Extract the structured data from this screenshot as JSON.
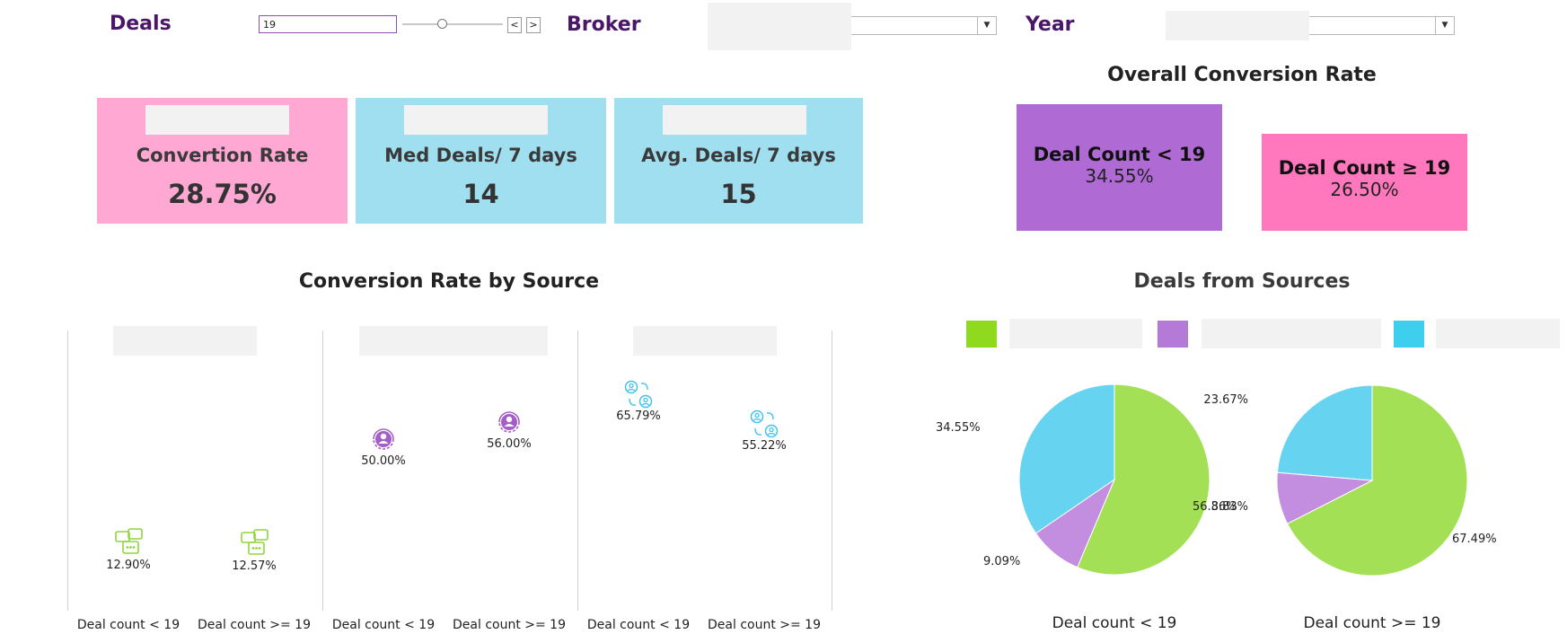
{
  "filters": {
    "deals_label": "Deals",
    "deals_value": "19",
    "prev_label": "<",
    "next_label": ">",
    "broker_label": "Broker",
    "year_label": "Year",
    "dropdown_arrow": "▼"
  },
  "kpis": [
    {
      "label": "Convertion Rate",
      "value": "28.75%",
      "color": "#ffa8d4"
    },
    {
      "label": "Med Deals/ 7 days",
      "value": "14",
      "color": "#a0dff0"
    },
    {
      "label": "Avg. Deals/ 7 days",
      "value": "15",
      "color": "#a0dff0"
    }
  ],
  "overall": {
    "title": "Overall Conversion Rate",
    "low": {
      "label": "Deal Count < 19",
      "value": "34.55%",
      "color": "#b06ad4"
    },
    "high": {
      "label": "Deal Count ≥ 19",
      "value": "26.50%",
      "color": "#ff77bd"
    }
  },
  "colors": {
    "green": "#a3e056",
    "purple": "#c38ee0",
    "cyan": "#66d4f0",
    "green_icon": "#8fd63a",
    "purple_icon": "#a45ec8",
    "cyan_icon": "#3ec4ec"
  },
  "chart_data": [
    {
      "type": "scatter",
      "title": "Conversion Rate by Source",
      "panels": [
        {
          "name": "",
          "icon": "chat-icon",
          "categories": [
            "Deal count < 19",
            "Deal count >= 19"
          ],
          "values": [
            12.9,
            12.57
          ],
          "labels": [
            "12.90%",
            "12.57%"
          ]
        },
        {
          "name": "",
          "icon": "user-circle-icon",
          "categories": [
            "Deal count < 19",
            "Deal count >= 19"
          ],
          "values": [
            50.0,
            56.0
          ],
          "labels": [
            "50.00%",
            "56.00%"
          ]
        },
        {
          "name": "",
          "icon": "referral-icon",
          "categories": [
            "Deal count < 19",
            "Deal count >= 19"
          ],
          "values": [
            65.79,
            55.22
          ],
          "labels": [
            "65.79%",
            "55.22%"
          ]
        }
      ]
    },
    {
      "type": "pie",
      "title": "Deals from Sources",
      "series_colors": [
        "#a3e056",
        "#c38ee0",
        "#66d4f0"
      ],
      "pies": [
        {
          "name": "Deal count < 19",
          "values": [
            56.36,
            9.09,
            34.55
          ],
          "labels": [
            "56.36%",
            "9.09%",
            "34.55%"
          ]
        },
        {
          "name": "Deal count >= 19",
          "values": [
            67.49,
            8.83,
            23.67
          ],
          "labels": [
            "67.49%",
            "8.83%",
            "23.67%"
          ]
        }
      ]
    }
  ]
}
